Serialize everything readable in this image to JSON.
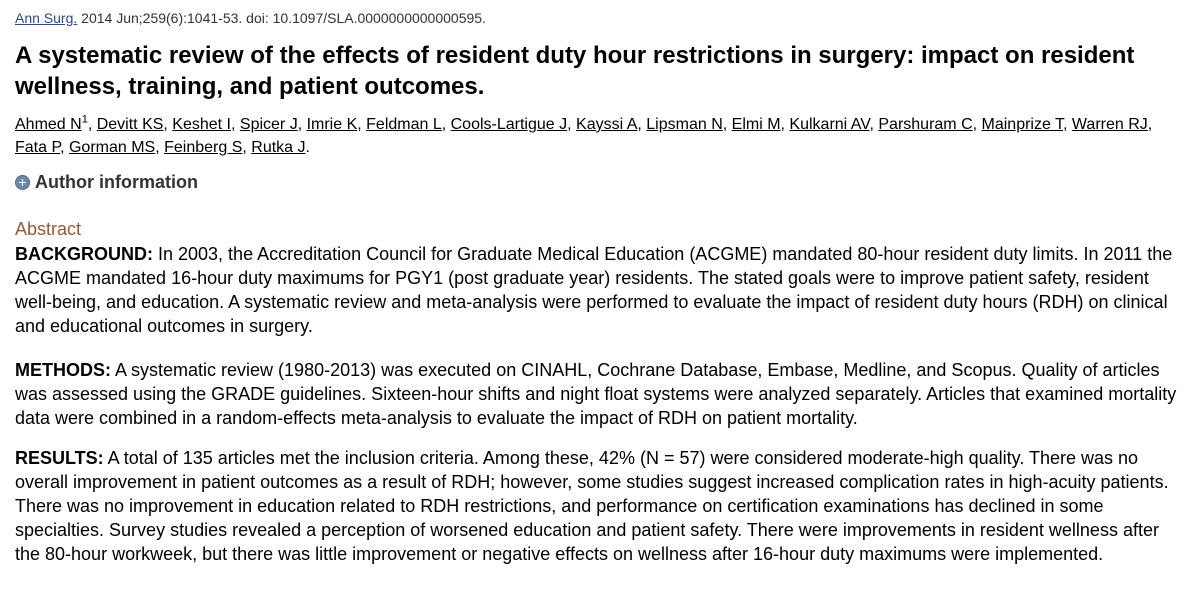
{
  "citation": {
    "journal": "Ann Surg.",
    "details": " 2014 Jun;259(6):1041-53. doi: 10.1097/SLA.0000000000000595."
  },
  "title": "A systematic review of the effects of resident duty hour restrictions in surgery: impact on resident wellness, training, and patient outcomes.",
  "authors": [
    {
      "name": "Ahmed N",
      "sup": "1"
    },
    {
      "name": "Devitt KS"
    },
    {
      "name": "Keshet I"
    },
    {
      "name": "Spicer J"
    },
    {
      "name": "Imrie K"
    },
    {
      "name": "Feldman L"
    },
    {
      "name": "Cools-Lartigue J"
    },
    {
      "name": "Kayssi A"
    },
    {
      "name": "Lipsman N"
    },
    {
      "name": "Elmi M"
    },
    {
      "name": "Kulkarni AV"
    },
    {
      "name": "Parshuram C"
    },
    {
      "name": "Mainprize T"
    },
    {
      "name": "Warren RJ"
    },
    {
      "name": "Fata P"
    },
    {
      "name": "Gorman MS"
    },
    {
      "name": "Feinberg S"
    },
    {
      "name": "Rutka J"
    }
  ],
  "author_info_label": "Author information",
  "abstract": {
    "heading": "Abstract",
    "sections": {
      "background": {
        "label": "BACKGROUND:",
        "text": " In 2003, the Accreditation Council for Graduate Medical Education (ACGME) mandated 80-hour resident duty limits. In 2011 the ACGME mandated 16-hour duty maximums for PGY1 (post graduate year) residents. The stated goals were to improve patient safety, resident well-being, and education. A systematic review and meta-analysis were performed to evaluate the impact of resident duty hours (RDH) on clinical and educational outcomes in surgery."
      },
      "methods": {
        "label": "METHODS:",
        "text": " A systematic review (1980-2013) was executed on CINAHL, Cochrane Database, Embase, Medline, and Scopus. Quality of articles was assessed using the GRADE guidelines. Sixteen-hour shifts and night float systems were analyzed separately. Articles that examined mortality data were combined in a random-effects meta-analysis to evaluate the impact of RDH on patient mortality."
      },
      "results": {
        "label": "RESULTS:",
        "text": " A total of 135 articles met the inclusion criteria. Among these, 42% (N = 57) were considered moderate-high quality. There was no overall improvement in patient outcomes as a result of RDH; however, some studies suggest increased complication rates in high-acuity patients. There was no improvement in education related to RDH restrictions, and performance on certification examinations has declined in some specialties. Survey studies revealed a perception of worsened education and patient safety. There were improvements in resident wellness after the 80-hour workweek, but there was little improvement or negative effects on wellness after 16-hour duty maximums were implemented."
      }
    }
  },
  "colors": {
    "link": "#2f4a8a",
    "abstract_heading": "#985735",
    "expand_icon": "#6d87a8"
  },
  "icons": {
    "author_info_toggle": "plus-circle-icon"
  }
}
